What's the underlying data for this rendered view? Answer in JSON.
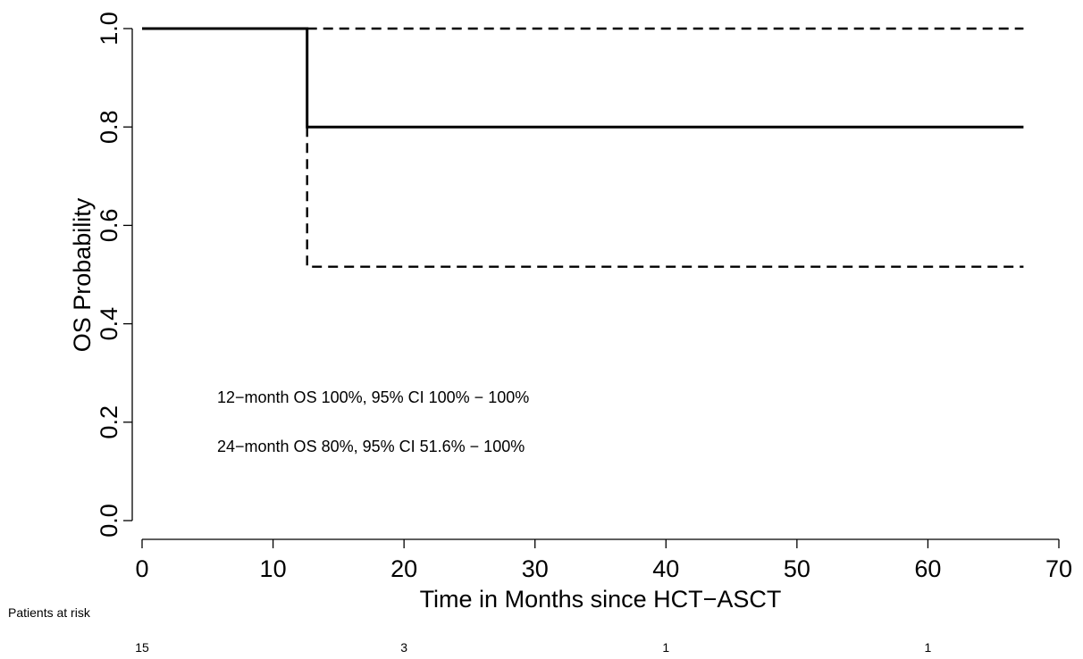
{
  "chart_data": {
    "type": "line",
    "title": "",
    "xlabel": "Time in Months since HCT−ASCT",
    "ylabel": "OS Probability",
    "xlim": [
      0,
      70
    ],
    "ylim": [
      0.0,
      1.0
    ],
    "xticks": [
      0,
      10,
      20,
      30,
      40,
      50,
      60,
      70
    ],
    "yticks": [
      0.0,
      0.2,
      0.4,
      0.6,
      0.8,
      1.0
    ],
    "xtick_labels": [
      "0",
      "10",
      "20",
      "30",
      "40",
      "50",
      "60",
      "70"
    ],
    "ytick_labels": [
      "0.0",
      "0.2",
      "0.4",
      "0.6",
      "0.8",
      "1.0"
    ],
    "grid": false,
    "series": [
      {
        "style": "solid",
        "points": [
          [
            0,
            1.0
          ],
          [
            12.6,
            1.0
          ],
          [
            12.6,
            0.8
          ],
          [
            67.3,
            0.8
          ]
        ]
      },
      {
        "style": "dashed",
        "points": [
          [
            12.6,
            1.0
          ],
          [
            67.3,
            1.0
          ]
        ]
      },
      {
        "style": "dashed",
        "points": [
          [
            12.6,
            0.8
          ],
          [
            12.6,
            0.516
          ],
          [
            67.3,
            0.516
          ]
        ]
      }
    ],
    "annotations": [
      {
        "text": "12−month OS 100%, 95% CI 100% − 100%"
      },
      {
        "text": "24−month OS 80%, 95% CI 51.6% − 100%"
      }
    ],
    "risk_table": {
      "label": "Patients at risk",
      "times": [
        0,
        20,
        40,
        60
      ],
      "counts": [
        "15",
        "3",
        "1",
        "1"
      ]
    }
  }
}
